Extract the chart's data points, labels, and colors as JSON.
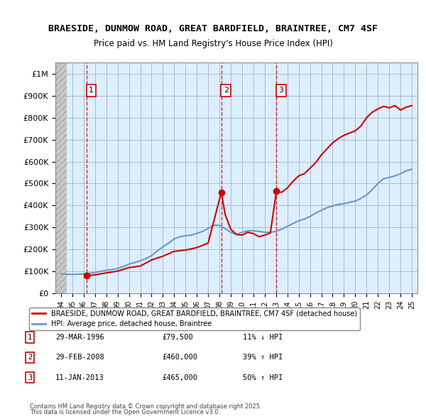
{
  "title": "BRAESIDE, DUNMOW ROAD, GREAT BARDFIELD, BRAINTREE, CM7 4SF",
  "subtitle": "Price paid vs. HM Land Registry's House Price Index (HPI)",
  "legend_property": "BRAESIDE, DUNMOW ROAD, GREAT BARDFIELD, BRAINTREE, CM7 4SF (detached house)",
  "legend_hpi": "HPI: Average price, detached house, Braintree",
  "footer1": "Contains HM Land Registry data © Crown copyright and database right 2025.",
  "footer2": "This data is licensed under the Open Government Licence v3.0.",
  "sales": [
    {
      "label": "1",
      "date": "29-MAR-1996",
      "price": 79500,
      "pct": "11% ↓ HPI",
      "year": 1996.24
    },
    {
      "label": "2",
      "date": "29-FEB-2008",
      "price": 460000,
      "pct": "39% ↑ HPI",
      "year": 2008.16
    },
    {
      "label": "3",
      "date": "11-JAN-2013",
      "price": 465000,
      "pct": "50% ↑ HPI",
      "year": 2013.03
    }
  ],
  "xlim": [
    1993.5,
    2025.5
  ],
  "ylim": [
    0,
    1050000
  ],
  "hatch_end_year": 1994.5,
  "property_color": "#cc0000",
  "hpi_color": "#6699cc",
  "sale_marker_color": "#cc0000",
  "dashed_line_color": "#cc0000",
  "hatch_color": "#cccccc",
  "background_color": "#ddeeff",
  "hatch_bg_color": "#cccccc",
  "grid_color": "#aabbcc",
  "yticks": [
    0,
    100000,
    200000,
    300000,
    400000,
    500000,
    600000,
    700000,
    800000,
    900000,
    1000000
  ],
  "ytick_labels": [
    "£0",
    "£100K",
    "£200K",
    "£300K",
    "£400K",
    "£500K",
    "£600K",
    "£700K",
    "£800K",
    "£900K",
    "£1M"
  ],
  "hpi_data": {
    "years": [
      1994,
      1994.5,
      1995,
      1995.5,
      1996,
      1996.5,
      1997,
      1997.5,
      1998,
      1998.5,
      1999,
      1999.5,
      2000,
      2000.5,
      2001,
      2001.5,
      2002,
      2002.5,
      2003,
      2003.5,
      2004,
      2004.5,
      2005,
      2005.5,
      2006,
      2006.5,
      2007,
      2007.5,
      2008,
      2008.5,
      2009,
      2009.5,
      2010,
      2010.5,
      2011,
      2011.5,
      2012,
      2012.5,
      2013,
      2013.5,
      2014,
      2014.5,
      2015,
      2015.5,
      2016,
      2016.5,
      2017,
      2017.5,
      2018,
      2018.5,
      2019,
      2019.5,
      2020,
      2020.5,
      2021,
      2021.5,
      2022,
      2022.5,
      2023,
      2023.5,
      2024,
      2024.5,
      2025
    ],
    "values": [
      88000,
      87000,
      86000,
      87000,
      88000,
      91000,
      95000,
      100000,
      105000,
      108000,
      113000,
      122000,
      133000,
      140000,
      148000,
      158000,
      172000,
      192000,
      212000,
      228000,
      248000,
      258000,
      262000,
      265000,
      273000,
      282000,
      295000,
      310000,
      310000,
      295000,
      278000,
      268000,
      278000,
      285000,
      285000,
      282000,
      278000,
      278000,
      282000,
      292000,
      305000,
      318000,
      330000,
      338000,
      350000,
      365000,
      378000,
      390000,
      398000,
      405000,
      408000,
      415000,
      420000,
      432000,
      448000,
      472000,
      500000,
      522000,
      528000,
      535000,
      545000,
      558000,
      565000
    ]
  },
  "property_data": {
    "years": [
      1996.24,
      2008.16,
      2013.03
    ],
    "values": [
      79500,
      460000,
      465000
    ]
  },
  "property_line_years": [
    1996.24,
    1997,
    1998,
    1999,
    2000,
    2001,
    2002,
    2003,
    2004,
    2005,
    2006,
    2007,
    2008.16,
    2008.5,
    2009,
    2009.5,
    2010,
    2010.5,
    2011,
    2011.5,
    2012,
    2012.5,
    2013.03,
    2013.5,
    2014,
    2014.5,
    2015,
    2015.5,
    2016,
    2016.5,
    2017,
    2017.5,
    2018,
    2018.5,
    2019,
    2019.5,
    2020,
    2020.5,
    2021,
    2021.5,
    2022,
    2022.5,
    2023,
    2023.5,
    2024,
    2024.5,
    2025
  ],
  "property_line_values": [
    79500,
    84000,
    93000,
    101000,
    117000,
    124000,
    152000,
    169000,
    191000,
    197000,
    208000,
    229000,
    460000,
    360000,
    292000,
    268000,
    265000,
    278000,
    272000,
    258000,
    265000,
    275000,
    465000,
    460000,
    480000,
    510000,
    535000,
    545000,
    570000,
    595000,
    630000,
    658000,
    685000,
    705000,
    720000,
    730000,
    740000,
    762000,
    800000,
    825000,
    840000,
    852000,
    845000,
    855000,
    835000,
    848000,
    855000
  ]
}
